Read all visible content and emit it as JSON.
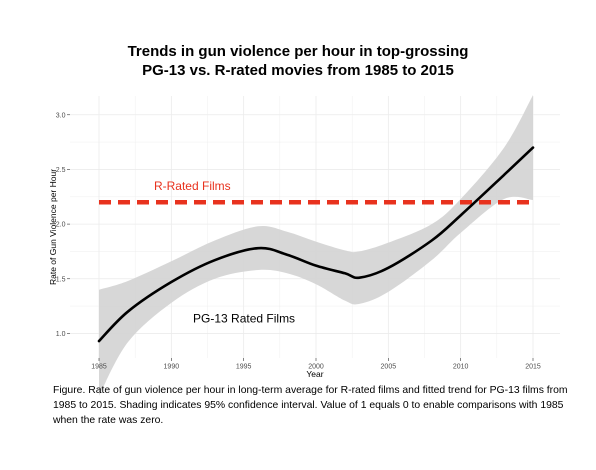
{
  "chart_data": {
    "type": "line",
    "title": [
      "Trends in gun violence per hour in top-grossing",
      "PG-13 vs. R-rated movies from 1985 to 2015"
    ],
    "xlabel": "Year",
    "ylabel": "Rate of Gun Violence per Hour",
    "xlim": [
      1985,
      2015
    ],
    "ylim": [
      0.5,
      3.2
    ],
    "x_ticks": [
      1985,
      1990,
      1995,
      2000,
      2005,
      2010,
      2015
    ],
    "y_ticks": [
      1.0,
      1.5,
      2.0,
      2.5,
      3.0
    ],
    "x_tick_labels": [
      "1985",
      "1990",
      "1995",
      "2000",
      "2005",
      "2010",
      "2015"
    ],
    "y_tick_labels": [
      "1.0",
      "1.5",
      "2.0",
      "2.5",
      "3.0"
    ],
    "grid": true,
    "series": [
      {
        "name": "PG-13 Rated Films",
        "style": "solid",
        "color": "#000000",
        "x": [
          1985,
          1987,
          1990,
          1993,
          1996,
          1998,
          2000,
          2002,
          2003,
          2005,
          2008,
          2010,
          2013,
          2015
        ],
        "y": [
          0.93,
          1.2,
          1.47,
          1.67,
          1.78,
          1.72,
          1.62,
          1.55,
          1.51,
          1.6,
          1.85,
          2.08,
          2.45,
          2.7
        ],
        "ci_upper": [
          1.4,
          1.48,
          1.66,
          1.85,
          1.98,
          1.93,
          1.84,
          1.76,
          1.75,
          1.83,
          2.0,
          2.23,
          2.7,
          3.18
        ],
        "ci_lower": [
          0.43,
          0.92,
          1.28,
          1.5,
          1.58,
          1.55,
          1.45,
          1.3,
          1.27,
          1.38,
          1.67,
          1.92,
          2.23,
          2.22
        ]
      },
      {
        "name": "R-Rated Films",
        "style": "dashed",
        "color": "#e8321e",
        "x": [
          1985,
          2015
        ],
        "y": [
          2.2,
          2.2
        ]
      }
    ],
    "annotations": [
      {
        "text": "R-Rated Films",
        "x": 1988.8,
        "y": 2.31,
        "color": "#e8321e"
      },
      {
        "text": "PG-13 Rated Films",
        "x": 1991.5,
        "y": 1.1,
        "color": "#000000"
      }
    ],
    "ci_fill": "#d3d3d3",
    "panel_bg": "#ffffff",
    "grid_color": "#ebebeb"
  },
  "caption": "Figure. Rate of gun violence per hour in long-term average for R-rated films and fitted trend for PG-13 films from 1985 to 2015.  Shading indicates 95% confidence interval. Value of 1 equals 0 to enable comparisons with 1985 when the rate was zero."
}
